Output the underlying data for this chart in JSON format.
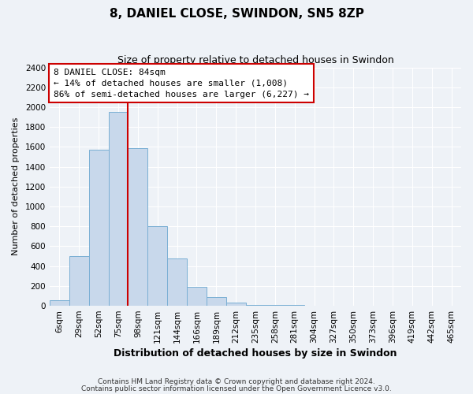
{
  "title": "8, DANIEL CLOSE, SWINDON, SN5 8ZP",
  "subtitle": "Size of property relative to detached houses in Swindon",
  "xlabel": "Distribution of detached houses by size in Swindon",
  "ylabel": "Number of detached properties",
  "bar_labels": [
    "6sqm",
    "29sqm",
    "52sqm",
    "75sqm",
    "98sqm",
    "121sqm",
    "144sqm",
    "166sqm",
    "189sqm",
    "212sqm",
    "235sqm",
    "258sqm",
    "281sqm",
    "304sqm",
    "327sqm",
    "350sqm",
    "373sqm",
    "396sqm",
    "419sqm",
    "442sqm",
    "465sqm"
  ],
  "bar_values": [
    55,
    500,
    1575,
    1950,
    1590,
    800,
    480,
    190,
    90,
    30,
    5,
    5,
    5,
    0,
    0,
    0,
    0,
    0,
    0,
    0,
    0
  ],
  "bar_color": "#c8d8eb",
  "bar_edge_color": "#7aafd4",
  "property_line_x": 3.5,
  "property_line_color": "#cc0000",
  "ylim": [
    0,
    2400
  ],
  "yticks": [
    0,
    200,
    400,
    600,
    800,
    1000,
    1200,
    1400,
    1600,
    1800,
    2000,
    2200,
    2400
  ],
  "annotation_title": "8 DANIEL CLOSE: 84sqm",
  "annotation_line1": "← 14% of detached houses are smaller (1,008)",
  "annotation_line2": "86% of semi-detached houses are larger (6,227) →",
  "annotation_box_color": "#ffffff",
  "annotation_box_edge": "#cc0000",
  "footer1": "Contains HM Land Registry data © Crown copyright and database right 2024.",
  "footer2": "Contains public sector information licensed under the Open Government Licence v3.0.",
  "background_color": "#eef2f7",
  "grid_color": "#ffffff",
  "title_fontsize": 11,
  "subtitle_fontsize": 9,
  "ylabel_fontsize": 8,
  "xlabel_fontsize": 9,
  "tick_fontsize": 7.5,
  "footer_fontsize": 6.5,
  "annotation_fontsize": 8
}
